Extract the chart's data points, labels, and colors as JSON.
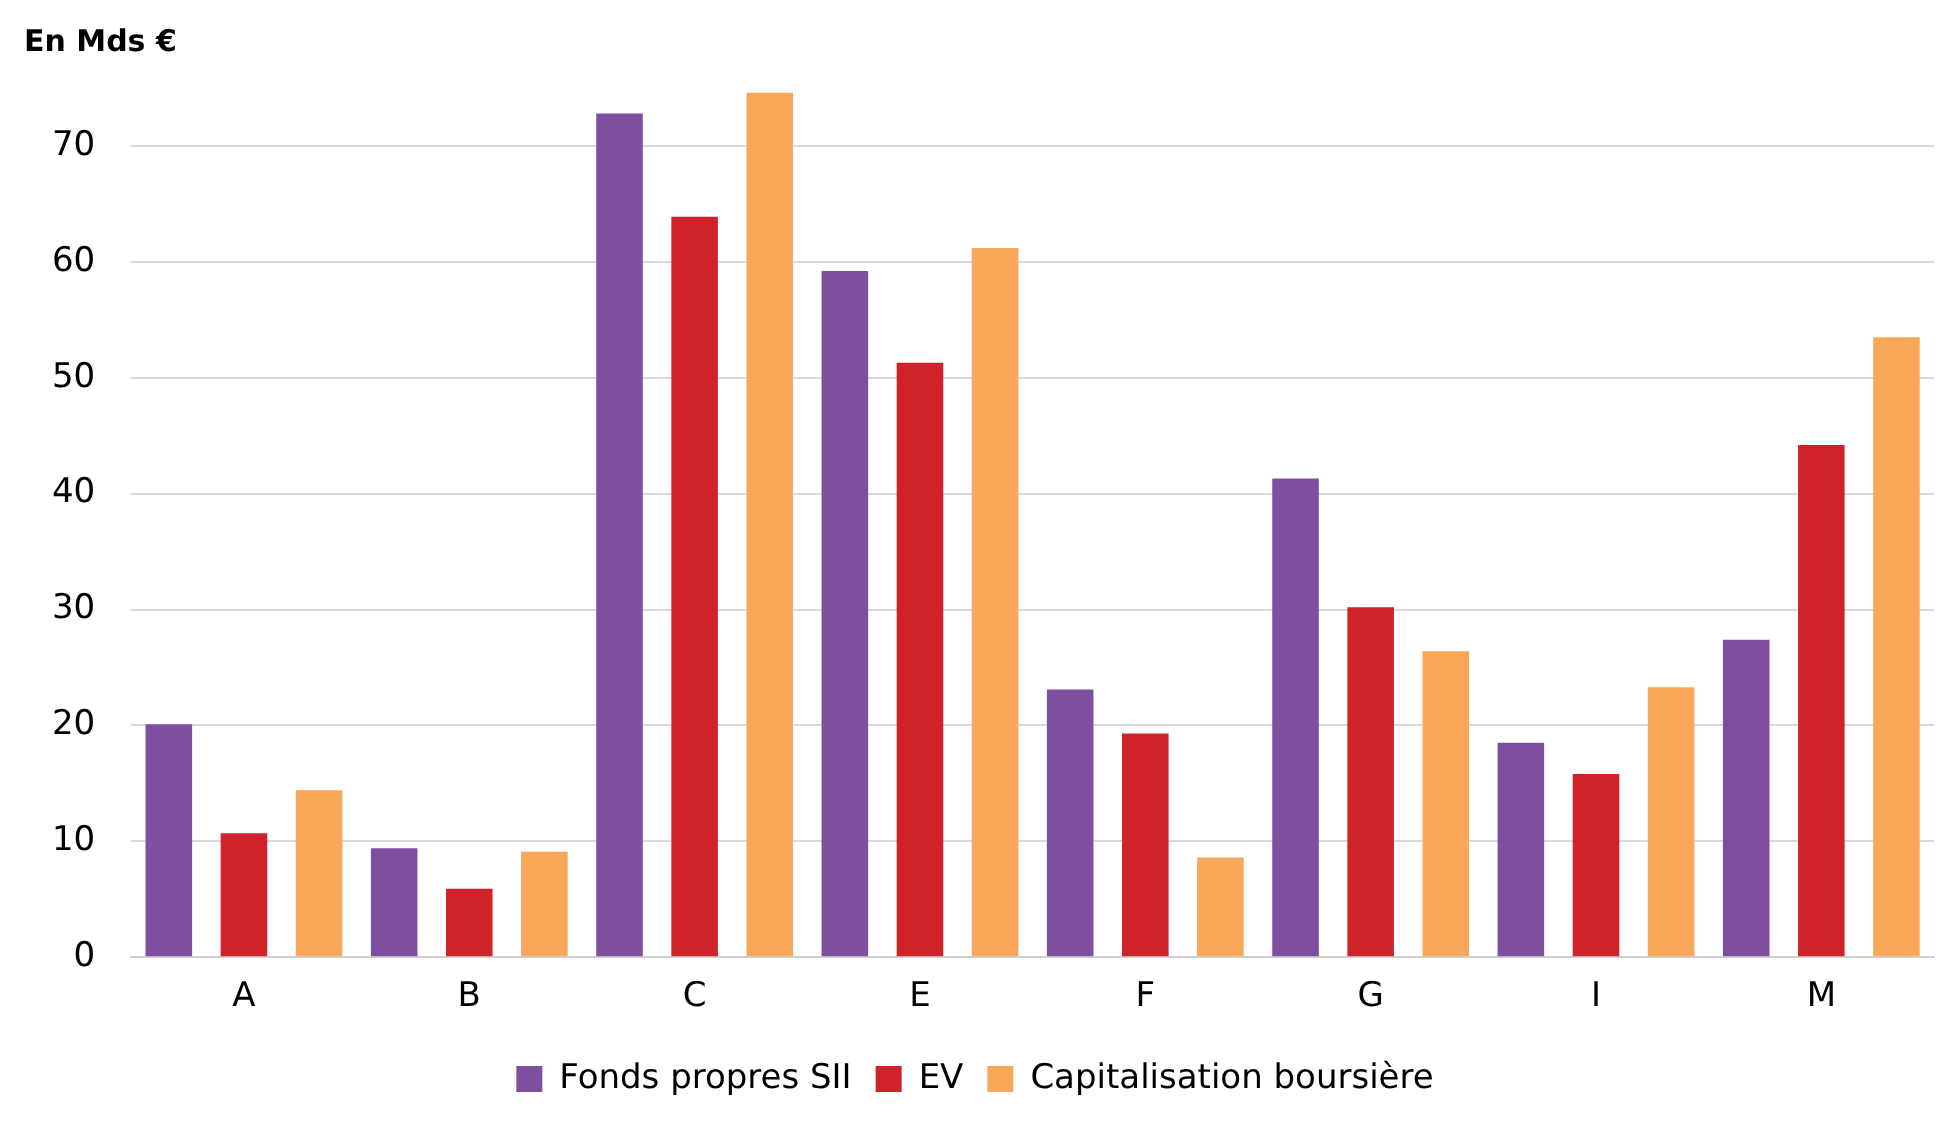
{
  "chart_data": {
    "type": "bar",
    "ylabel": "En Mds €",
    "categories": [
      "A",
      "B",
      "C",
      "E",
      "F",
      "G",
      "I",
      "M"
    ],
    "series": [
      {
        "name": "Fonds propres SII",
        "color": "#7f4f9f",
        "values": [
          20.1,
          9.4,
          72.8,
          59.2,
          23.1,
          41.3,
          18.5,
          27.4
        ]
      },
      {
        "name": "EV",
        "color": "#d0222a",
        "values": [
          10.7,
          5.9,
          63.9,
          51.3,
          19.3,
          30.2,
          15.8,
          44.2
        ]
      },
      {
        "name": "Capitalisation boursière",
        "color": "#f9a85a",
        "values": [
          14.4,
          9.1,
          74.6,
          61.2,
          8.6,
          26.4,
          23.3,
          53.5
        ]
      }
    ],
    "ylim": [
      0,
      75
    ],
    "yticks": [
      0,
      10,
      20,
      30,
      40,
      50,
      60,
      70
    ],
    "grid": "y",
    "legend": "bottom"
  }
}
